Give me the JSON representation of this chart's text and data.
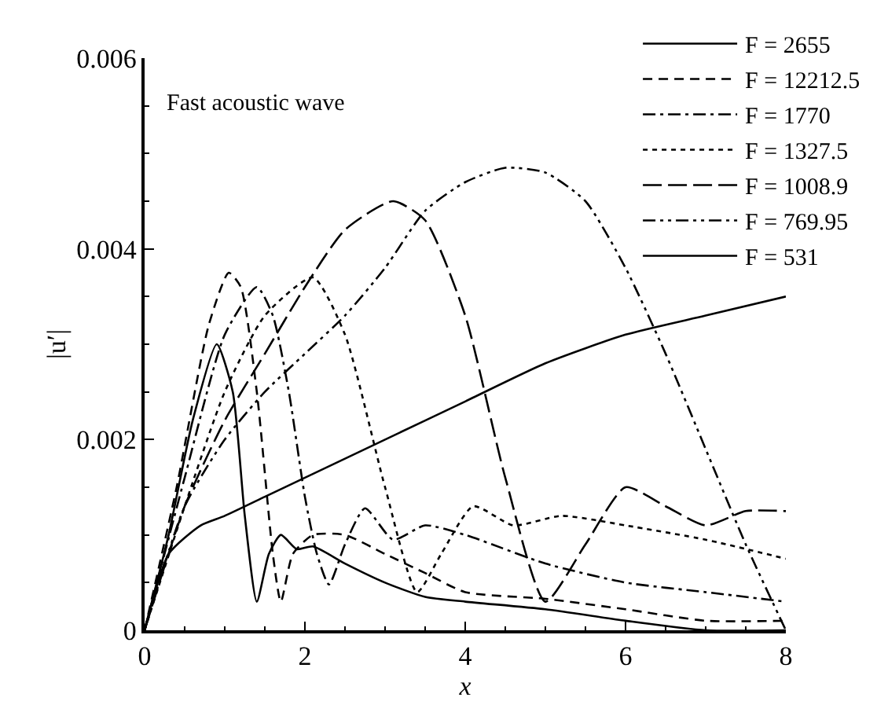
{
  "chart_data": {
    "type": "line",
    "xlabel": "x",
    "ylabel": "|u′|",
    "annotations": [
      "Fast acoustic wave"
    ],
    "xlim": [
      0,
      8
    ],
    "xticks": [
      0,
      2,
      4,
      6,
      8
    ],
    "ylim": [
      0,
      0.006
    ],
    "yticks": [
      0,
      0.002,
      0.004,
      0.006
    ],
    "legend": "top right",
    "marker": "none",
    "series": [
      {
        "name": "F = 2655",
        "color": "#000000",
        "line_style": "solid",
        "x": [
          0,
          0.3,
          0.6,
          0.9,
          1.1,
          1.25,
          1.4,
          1.55,
          1.7,
          1.9,
          2.1,
          2.5,
          3,
          3.5,
          4,
          5,
          6,
          7,
          8
        ],
        "values": [
          0,
          0.001,
          0.0022,
          0.003,
          0.0025,
          0.0012,
          0.0003,
          0.0008,
          0.001,
          0.00085,
          0.00088,
          0.0007,
          0.0005,
          0.00035,
          0.0003,
          0.00022,
          0.0001,
          0,
          0
        ]
      },
      {
        "name": "F = 12212.5",
        "color": "#000000",
        "line_style": "dashed",
        "x": [
          0,
          0.4,
          0.8,
          1.05,
          1.2,
          1.4,
          1.6,
          1.7,
          1.85,
          2.1,
          2.5,
          3,
          3.5,
          4,
          5,
          6,
          7,
          8
        ],
        "values": [
          0,
          0.0015,
          0.0032,
          0.00375,
          0.0036,
          0.0025,
          0.0008,
          0.0003,
          0.0008,
          0.001,
          0.001,
          0.0008,
          0.0006,
          0.0004,
          0.00033,
          0.00022,
          0.0001,
          0.0001
        ]
      },
      {
        "name": "F = 1770",
        "color": "#000000",
        "line_style": "dashdot",
        "x": [
          0,
          0.5,
          1,
          1.4,
          1.6,
          1.8,
          2,
          2.15,
          2.3,
          2.5,
          2.75,
          3.1,
          3.5,
          4,
          5,
          6,
          7,
          8
        ],
        "values": [
          0,
          0.0016,
          0.0031,
          0.0036,
          0.0033,
          0.0025,
          0.0014,
          0.0008,
          0.00048,
          0.0009,
          0.00128,
          0.00095,
          0.0011,
          0.001,
          0.0007,
          0.0005,
          0.0004,
          0.0003
        ]
      },
      {
        "name": "F = 1327.5",
        "color": "#000000",
        "line_style": "dotted",
        "x": [
          0,
          0.5,
          1,
          1.5,
          2.1,
          2.5,
          3,
          3.4,
          3.7,
          4.1,
          4.6,
          5.2,
          6,
          7,
          8
        ],
        "values": [
          0,
          0.0013,
          0.0025,
          0.0033,
          0.0037,
          0.0031,
          0.0015,
          0.0004,
          0.0008,
          0.0013,
          0.0011,
          0.0012,
          0.0011,
          0.00095,
          0.00075
        ]
      },
      {
        "name": "F = 1008.9",
        "color": "#000000",
        "line_style": "longdash",
        "x": [
          0,
          0.5,
          1,
          1.5,
          2,
          2.5,
          3.1,
          3.5,
          4,
          4.5,
          5,
          5.5,
          6,
          6.5,
          7,
          7.5,
          8
        ],
        "values": [
          0,
          0.0013,
          0.0022,
          0.0029,
          0.0036,
          0.0042,
          0.0045,
          0.0043,
          0.0033,
          0.0016,
          0.0003,
          0.0009,
          0.0015,
          0.0013,
          0.0011,
          0.00125,
          0.00125
        ]
      },
      {
        "name": "F = 769.95",
        "color": "#000000",
        "line_style": "dashdotdot",
        "x": [
          0,
          0.5,
          1,
          1.5,
          2,
          2.5,
          3,
          3.5,
          4,
          4.5,
          5,
          5.5,
          6,
          6.5,
          7,
          7.5,
          8
        ],
        "values": [
          0,
          0.0013,
          0.002,
          0.0025,
          0.0029,
          0.0033,
          0.0038,
          0.0044,
          0.0047,
          0.00485,
          0.0048,
          0.0045,
          0.0038,
          0.0029,
          0.0019,
          0.0009,
          0
        ]
      },
      {
        "name": "F = 531",
        "color": "#000000",
        "line_style": "solid",
        "x": [
          0,
          0.3,
          0.7,
          1,
          1.5,
          2,
          3,
          4,
          5,
          6,
          7,
          8
        ],
        "values": [
          0,
          0.0008,
          0.0011,
          0.0012,
          0.0014,
          0.0016,
          0.002,
          0.0024,
          0.0028,
          0.0031,
          0.0033,
          0.0035
        ]
      }
    ]
  }
}
